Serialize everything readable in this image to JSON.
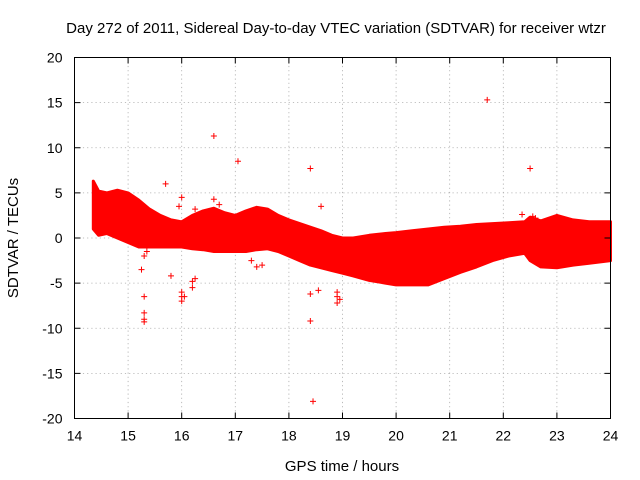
{
  "chart_data": {
    "type": "scatter",
    "title": "Day 272 of 2011, Sidereal Day-to-day VTEC variation (SDTVAR) for receiver wtzr",
    "xlabel": "GPS time / hours",
    "ylabel": "SDTVAR / TECUs",
    "xlim": [
      14,
      24
    ],
    "ylim": [
      -20,
      20
    ],
    "xticks": [
      14,
      15,
      16,
      17,
      18,
      19,
      20,
      21,
      22,
      23,
      24
    ],
    "yticks": [
      -20,
      -15,
      -10,
      -5,
      0,
      5,
      10,
      15,
      20
    ],
    "grid": true,
    "series_color": "#ff0000",
    "marker": "plus",
    "band": {
      "x": [
        14.35,
        14.45,
        14.6,
        14.8,
        15.0,
        15.2,
        15.4,
        15.6,
        15.8,
        16.0,
        16.2,
        16.4,
        16.6,
        16.8,
        17.0,
        17.2,
        17.4,
        17.6,
        17.8,
        18.0,
        18.2,
        18.4,
        18.6,
        18.8,
        19.0,
        19.2,
        19.5,
        19.8,
        20.0,
        20.3,
        20.6,
        20.9,
        21.2,
        21.5,
        21.8,
        22.1,
        22.4,
        22.5,
        22.7,
        23.0,
        23.3,
        23.6,
        24.0
      ],
      "upper": [
        6.3,
        5.2,
        5.0,
        5.3,
        5.0,
        4.2,
        3.2,
        2.5,
        2.0,
        1.8,
        2.5,
        3.0,
        3.3,
        2.8,
        2.5,
        3.0,
        3.4,
        3.2,
        2.5,
        2.0,
        1.6,
        1.2,
        0.8,
        0.3,
        0.0,
        0.0,
        0.3,
        0.5,
        0.6,
        0.8,
        1.0,
        1.2,
        1.3,
        1.5,
        1.6,
        1.7,
        1.8,
        2.3,
        1.9,
        2.5,
        2.0,
        1.8,
        1.8
      ],
      "lower": [
        1.0,
        0.3,
        0.5,
        0.0,
        -0.5,
        -1.0,
        -1.0,
        -1.0,
        -1.0,
        -1.0,
        -1.2,
        -1.3,
        -1.5,
        -1.5,
        -1.5,
        -1.5,
        -1.3,
        -1.2,
        -1.5,
        -2.0,
        -2.5,
        -3.0,
        -3.3,
        -3.6,
        -3.9,
        -4.2,
        -4.7,
        -5.0,
        -5.2,
        -5.2,
        -5.2,
        -4.5,
        -3.8,
        -3.2,
        -2.5,
        -2.0,
        -1.7,
        -2.5,
        -3.2,
        -3.3,
        -3.0,
        -2.8,
        -2.5
      ]
    },
    "outliers": [
      {
        "x": 15.3,
        "y": -6.5
      },
      {
        "x": 15.3,
        "y": -8.3
      },
      {
        "x": 15.3,
        "y": -9.0
      },
      {
        "x": 15.3,
        "y": -9.3
      },
      {
        "x": 15.25,
        "y": -3.5
      },
      {
        "x": 15.3,
        "y": -2.0
      },
      {
        "x": 15.35,
        "y": -1.5
      },
      {
        "x": 15.7,
        "y": 6.0
      },
      {
        "x": 15.8,
        "y": -4.2
      },
      {
        "x": 16.0,
        "y": -6.0
      },
      {
        "x": 16.0,
        "y": -6.5
      },
      {
        "x": 16.0,
        "y": -7.0
      },
      {
        "x": 16.05,
        "y": -6.5
      },
      {
        "x": 16.2,
        "y": -5.5
      },
      {
        "x": 16.2,
        "y": -4.8
      },
      {
        "x": 16.25,
        "y": -4.5
      },
      {
        "x": 16.6,
        "y": 11.3
      },
      {
        "x": 16.6,
        "y": 4.3
      },
      {
        "x": 16.7,
        "y": 3.7
      },
      {
        "x": 17.05,
        "y": 8.5
      },
      {
        "x": 18.4,
        "y": 7.7
      },
      {
        "x": 18.4,
        "y": -6.2
      },
      {
        "x": 18.4,
        "y": -9.2
      },
      {
        "x": 18.45,
        "y": -18.1
      },
      {
        "x": 18.55,
        "y": -5.8
      },
      {
        "x": 18.6,
        "y": 3.5
      },
      {
        "x": 18.9,
        "y": -6.0
      },
      {
        "x": 18.9,
        "y": -6.5
      },
      {
        "x": 18.9,
        "y": -7.2
      },
      {
        "x": 18.95,
        "y": -6.8
      },
      {
        "x": 21.7,
        "y": 15.3
      },
      {
        "x": 22.35,
        "y": 2.6
      },
      {
        "x": 22.5,
        "y": 7.7
      },
      {
        "x": 22.55,
        "y": 2.4
      },
      {
        "x": 22.6,
        "y": 2.2
      },
      {
        "x": 16.0,
        "y": 4.5
      },
      {
        "x": 15.95,
        "y": 3.5
      },
      {
        "x": 16.25,
        "y": 3.2
      },
      {
        "x": 17.3,
        "y": -2.5
      },
      {
        "x": 17.4,
        "y": -3.2
      },
      {
        "x": 17.5,
        "y": -3.0
      }
    ]
  }
}
